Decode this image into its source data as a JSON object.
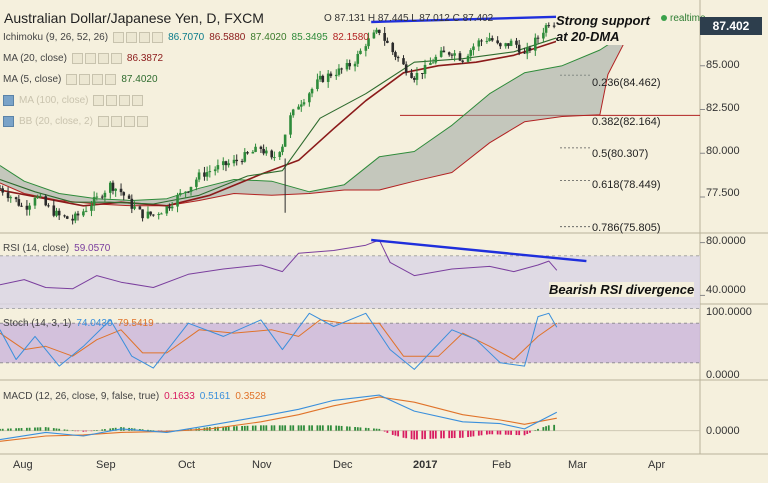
{
  "header": {
    "symbol_title": "Australian Dollar/Japanese Yen, D, FXCM",
    "ohlc": "O 87.131 H 87.445 L 87.012 C 87.402",
    "realtime_label": "realtime",
    "last_price": "87.402"
  },
  "indicators": [
    {
      "name": "Ichimoku (9, 26, 52, 26)",
      "values": [
        "86.7070",
        "86.5880",
        "87.4020",
        "85.3495",
        "82.1580"
      ],
      "colors": [
        "#0a7b8a",
        "#8b1a1a",
        "#3a7a2a",
        "#2e8b3a",
        "#b22222"
      ],
      "muted": false
    },
    {
      "name": "MA (20, close)",
      "values": [
        "86.3872"
      ],
      "colors": [
        "#8b1a1a"
      ],
      "muted": false
    },
    {
      "name": "MA (5, close)",
      "values": [
        "87.4020"
      ],
      "colors": [
        "#2e6b2e"
      ],
      "muted": false
    },
    {
      "name": "MA (100, close)",
      "values": [],
      "colors": [],
      "muted": true
    },
    {
      "name": "BB (20, close, 2)",
      "values": [],
      "colors": [],
      "muted": true
    }
  ],
  "rsi_legend": {
    "name": "RSI (14, close)",
    "value": "59.0570"
  },
  "stoch_legend": {
    "name": "Stoch (14, 3, 1)",
    "values": [
      "74.0430",
      "79.5419"
    ]
  },
  "macd_legend": {
    "name": "MACD (12, 26, close, 9, false, true)",
    "values": [
      "0.1633",
      "0.5161",
      "0.3528"
    ]
  },
  "annotations": {
    "support": [
      "Strong support",
      "at 20-DMA"
    ],
    "rsi_div": "Bearish RSI divergence"
  },
  "price_axis": [
    "85.000",
    "82.500",
    "80.000",
    "77.500"
  ],
  "fib_levels": [
    "0.236(84.462)",
    "0.382(82.164)",
    "0.5(80.307)",
    "0.618(78.449)",
    "0.786(75.805)"
  ],
  "rsi_axis": [
    "80.0000",
    "40.0000"
  ],
  "stoch_axis": [
    "100.0000",
    "0.0000"
  ],
  "macd_axis": [
    "0.0000"
  ],
  "x_axis": [
    "Aug",
    "Sep",
    "Oct",
    "Nov",
    "Dec",
    "2017",
    "Feb",
    "Mar",
    "Apr"
  ],
  "colors": {
    "background": "#f5f0dd",
    "bull_candle": "#2e8b3a",
    "bear_candle": "#2b2b2b",
    "cloud": "#9aa6a0",
    "ma20": "#8b1a1a",
    "ma5": "#2e6b2e",
    "span_b": "#b22222",
    "trendline": "#1f2fdc",
    "rsi": "#7b3f9e",
    "stoch_k": "#3a8fdc",
    "stoch_d": "#e0732a",
    "macd": "#3a8fdc",
    "signal": "#e0732a",
    "hist_pos": "#2e8b3a",
    "hist_neg": "#d81b60",
    "price_tag": "#2d3e4d"
  },
  "chart_data": {
    "type": "line",
    "title": "Australian Dollar/Japanese Yen, D, FXCM",
    "x": [
      "Aug",
      "Sep",
      "Oct",
      "Nov",
      "Dec",
      "2017",
      "Feb",
      "Mar",
      "Apr"
    ],
    "ylim": [
      75.5,
      88.3
    ],
    "price_points": [
      [
        "Jul 26",
        78.0
      ],
      [
        "Aug 1",
        77.3
      ],
      [
        "Aug 4",
        76.8
      ],
      [
        "Aug 8",
        77.6
      ],
      [
        "Aug 12",
        77.0
      ],
      [
        "Aug 17",
        76.4
      ],
      [
        "Aug 22",
        76.2
      ],
      [
        "Aug 26",
        76.7
      ],
      [
        "Aug 31",
        77.4
      ],
      [
        "Sep 5",
        78.2
      ],
      [
        "Sep 9",
        77.8
      ],
      [
        "Sep 13",
        77.0
      ],
      [
        "Sep 17",
        76.5
      ],
      [
        "Sep 21",
        76.5
      ],
      [
        "Sep 26",
        76.9
      ],
      [
        "Sep 30",
        77.5
      ],
      [
        "Oct 4",
        78.0
      ],
      [
        "Oct 8",
        78.7
      ],
      [
        "Oct 12",
        79.0
      ],
      [
        "Oct 17",
        79.3
      ],
      [
        "Oct 21",
        79.5
      ],
      [
        "Oct 26",
        79.9
      ],
      [
        "Oct 31",
        80.3
      ],
      [
        "Nov 4",
        79.6
      ],
      [
        "Nov 8",
        80.5
      ],
      [
        "Nov 10",
        81.8
      ],
      [
        "Nov 14",
        82.8
      ],
      [
        "Nov 18",
        83.5
      ],
      [
        "Nov 22",
        84.2
      ],
      [
        "Nov 27",
        84.6
      ],
      [
        "Dec 1",
        84.8
      ],
      [
        "Dec 5",
        85.3
      ],
      [
        "Dec 9",
        86.3
      ],
      [
        "Dec 14",
        87.0
      ],
      [
        "Dec 18",
        86.0
      ],
      [
        "Dec 23",
        85.0
      ],
      [
        "Dec 27",
        84.4
      ],
      [
        "Dec 31",
        84.8
      ],
      [
        "Jan 5",
        85.6
      ],
      [
        "Jan 10",
        85.8
      ],
      [
        "Jan 14",
        85.4
      ],
      [
        "Jan 19",
        86.3
      ],
      [
        "Jan 24",
        86.6
      ],
      [
        "Jan 28",
        86.0
      ],
      [
        "Feb 2",
        86.4
      ],
      [
        "Feb 6",
        85.6
      ],
      [
        "Feb 11",
        86.6
      ],
      [
        "Feb 15",
        87.5
      ],
      [
        "Feb 18",
        87.4
      ]
    ],
    "ma20_points": [
      [
        "Jul 26",
        77.9
      ],
      [
        "Aug 12",
        77.4
      ],
      [
        "Aug 26",
        77.0
      ],
      [
        "Sep 9",
        77.2
      ],
      [
        "Sep 26",
        77.0
      ],
      [
        "Oct 12",
        77.6
      ],
      [
        "Oct 31",
        78.8
      ],
      [
        "Nov 14",
        79.6
      ],
      [
        "Nov 27",
        81.4
      ],
      [
        "Dec 9",
        83.0
      ],
      [
        "Dec 23",
        84.6
      ],
      [
        "Jan 5",
        85.0
      ],
      [
        "Jan 19",
        85.2
      ],
      [
        "Feb 2",
        85.6
      ],
      [
        "Feb 18",
        86.4
      ]
    ],
    "kijun_points": [
      [
        "Jul 26",
        78.5
      ],
      [
        "Aug 8",
        77.8
      ],
      [
        "Aug 22",
        77.2
      ],
      [
        "Sep 5",
        77.2
      ],
      [
        "Sep 21",
        77.1
      ],
      [
        "Oct 8",
        77.6
      ],
      [
        "Oct 26",
        78.7
      ],
      [
        "Nov 8",
        79.0
      ],
      [
        "Nov 22",
        82.0
      ],
      [
        "Dec 9",
        83.4
      ],
      [
        "Dec 27",
        85.2
      ],
      [
        "Jan 14",
        85.4
      ],
      [
        "Feb 2",
        85.8
      ],
      [
        "Feb 18",
        86.6
      ]
    ],
    "cloud_a": [
      [
        "Jul 26",
        79.3
      ],
      [
        "Aug 4",
        78.4
      ],
      [
        "Aug 17",
        77.7
      ],
      [
        "Aug 31",
        77.4
      ],
      [
        "Sep 13",
        77.3
      ],
      [
        "Sep 26",
        77.4
      ],
      [
        "Oct 8",
        78.0
      ],
      [
        "Oct 21",
        78.5
      ],
      [
        "Nov 4",
        78.4
      ],
      [
        "Nov 18",
        77.8
      ],
      [
        "Dec 1",
        78.2
      ],
      [
        "Dec 14",
        79.8
      ],
      [
        "Dec 27",
        80.1
      ],
      [
        "Jan 10",
        81.6
      ],
      [
        "Jan 24",
        83.4
      ],
      [
        "Feb 6",
        84.6
      ],
      [
        "Feb 20",
        85.0
      ],
      [
        "Mar 6",
        85.9
      ],
      [
        "Mar 16",
        86.9
      ]
    ],
    "cloud_b": [
      [
        "Jul 26",
        78.3
      ],
      [
        "Aug 4",
        77.7
      ],
      [
        "Aug 17",
        77.3
      ],
      [
        "Aug 31",
        77.1
      ],
      [
        "Sep 13",
        77.0
      ],
      [
        "Sep 26",
        77.0
      ],
      [
        "Oct 8",
        77.3
      ],
      [
        "Oct 21",
        77.7
      ],
      [
        "Nov 4",
        77.6
      ],
      [
        "Nov 18",
        77.7
      ],
      [
        "Dec 1",
        77.9
      ],
      [
        "Dec 14",
        77.9
      ],
      [
        "Dec 27",
        78.4
      ],
      [
        "Jan 10",
        78.9
      ],
      [
        "Jan 24",
        80.6
      ],
      [
        "Feb 6",
        81.8
      ],
      [
        "Feb 20",
        82.1
      ],
      [
        "Mar 6",
        82.2
      ],
      [
        "Mar 9",
        84.5
      ],
      [
        "Mar 16",
        86.6
      ]
    ],
    "trendline_price": [
      [
        "Dec 11",
        87.5
      ],
      [
        "Feb 18",
        87.8
      ]
    ],
    "rsi": {
      "ylim": [
        35,
        85
      ],
      "bands": [
        70,
        30
      ],
      "points": [
        [
          "Jul 26",
          48
        ],
        [
          "Aug 4",
          52
        ],
        [
          "Aug 12",
          46
        ],
        [
          "Aug 22",
          45
        ],
        [
          "Aug 31",
          55
        ],
        [
          "Sep 9",
          50
        ],
        [
          "Sep 21",
          46
        ],
        [
          "Oct 4",
          56
        ],
        [
          "Oct 17",
          60
        ],
        [
          "Oct 31",
          63
        ],
        [
          "Nov 8",
          58
        ],
        [
          "Nov 14",
          72
        ],
        [
          "Nov 27",
          74
        ],
        [
          "Dec 9",
          78
        ],
        [
          "Dec 14",
          82
        ],
        [
          "Dec 18",
          65
        ],
        [
          "Dec 27",
          55
        ],
        [
          "Jan 10",
          60
        ],
        [
          "Jan 24",
          62
        ],
        [
          "Feb 2",
          58
        ],
        [
          "Feb 11",
          63
        ],
        [
          "Feb 15",
          66
        ],
        [
          "Feb 18",
          59
        ]
      ],
      "trendline": [
        [
          "Dec 11",
          82
        ],
        [
          "Mar 1",
          66
        ]
      ]
    },
    "stoch": {
      "ylim": [
        0,
        100
      ],
      "bands": [
        80,
        20
      ],
      "k": [
        [
          "Jul 26",
          70
        ],
        [
          "Aug 1",
          25
        ],
        [
          "Aug 8",
          60
        ],
        [
          "Aug 17",
          15
        ],
        [
          "Aug 26",
          45
        ],
        [
          "Sep 5",
          85
        ],
        [
          "Sep 13",
          30
        ],
        [
          "Sep 21",
          12
        ],
        [
          "Oct 4",
          80
        ],
        [
          "Oct 17",
          60
        ],
        [
          "Oct 31",
          85
        ],
        [
          "Nov 8",
          40
        ],
        [
          "Nov 18",
          95
        ],
        [
          "Nov 27",
          75
        ],
        [
          "Dec 9",
          95
        ],
        [
          "Dec 18",
          40
        ],
        [
          "Dec 27",
          10
        ],
        [
          "Jan 10",
          70
        ],
        [
          "Jan 19",
          55
        ],
        [
          "Jan 28",
          20
        ],
        [
          "Feb 6",
          15
        ],
        [
          "Feb 11",
          90
        ],
        [
          "Feb 15",
          95
        ],
        [
          "Feb 18",
          74
        ]
      ],
      "d": [
        [
          "Jul 26",
          65
        ],
        [
          "Aug 4",
          40
        ],
        [
          "Aug 12",
          45
        ],
        [
          "Aug 22",
          30
        ],
        [
          "Aug 31",
          55
        ],
        [
          "Sep 9",
          70
        ],
        [
          "Sep 17",
          35
        ],
        [
          "Sep 26",
          35
        ],
        [
          "Oct 8",
          70
        ],
        [
          "Oct 21",
          65
        ],
        [
          "Nov 4",
          70
        ],
        [
          "Nov 14",
          60
        ],
        [
          "Nov 22",
          85
        ],
        [
          "Dec 1",
          80
        ],
        [
          "Dec 14",
          80
        ],
        [
          "Dec 23",
          30
        ],
        [
          "Jan 5",
          30
        ],
        [
          "Jan 14",
          65
        ],
        [
          "Jan 24",
          45
        ],
        [
          "Feb 2",
          25
        ],
        [
          "Feb 11",
          60
        ],
        [
          "Feb 18",
          80
        ]
      ]
    },
    "macd": {
      "ylim": [
        -0.6,
        1.2
      ],
      "macd": [
        [
          "Jul 26",
          -0.25
        ],
        [
          "Aug 12",
          -0.05
        ],
        [
          "Aug 26",
          -0.15
        ],
        [
          "Sep 9",
          0.05
        ],
        [
          "Sep 26",
          -0.05
        ],
        [
          "Oct 12",
          0.15
        ],
        [
          "Oct 31",
          0.4
        ],
        [
          "Nov 14",
          0.6
        ],
        [
          "Nov 27",
          0.85
        ],
        [
          "Dec 14",
          1.0
        ],
        [
          "Dec 27",
          0.55
        ],
        [
          "Jan 14",
          0.25
        ],
        [
          "Jan 28",
          0.2
        ],
        [
          "Feb 6",
          0.05
        ],
        [
          "Feb 18",
          0.52
        ]
      ],
      "signal": [
        [
          "Jul 26",
          -0.3
        ],
        [
          "Aug 12",
          -0.15
        ],
        [
          "Aug 26",
          -0.12
        ],
        [
          "Sep 9",
          -0.05
        ],
        [
          "Sep 26",
          -0.02
        ],
        [
          "Oct 12",
          0.05
        ],
        [
          "Oct 31",
          0.25
        ],
        [
          "Nov 14",
          0.45
        ],
        [
          "Nov 27",
          0.7
        ],
        [
          "Dec 14",
          0.95
        ],
        [
          "Dec 27",
          0.8
        ],
        [
          "Jan 14",
          0.45
        ],
        [
          "Jan 28",
          0.3
        ],
        [
          "Feb 6",
          0.18
        ],
        [
          "Feb 18",
          0.35
        ]
      ],
      "hist": [
        [
          "Jul 26",
          0.05
        ],
        [
          "Aug 12",
          0.1
        ],
        [
          "Aug 26",
          -0.03
        ],
        [
          "Sep 9",
          0.1
        ],
        [
          "Sep 26",
          -0.03
        ],
        [
          "Oct 12",
          0.1
        ],
        [
          "Oct 31",
          0.15
        ],
        [
          "Nov 14",
          0.15
        ],
        [
          "Nov 27",
          0.15
        ],
        [
          "Dec 14",
          0.05
        ],
        [
          "Dec 18",
          -0.1
        ],
        [
          "Dec 23",
          -0.2
        ],
        [
          "Dec 27",
          -0.25
        ],
        [
          "Jan 5",
          -0.22
        ],
        [
          "Jan 14",
          -0.2
        ],
        [
          "Jan 24",
          -0.1
        ],
        [
          "Feb 2",
          -0.12
        ],
        [
          "Feb 6",
          -0.13
        ],
        [
          "Feb 11",
          0.05
        ],
        [
          "Feb 15",
          0.15
        ],
        [
          "Feb 18",
          0.17
        ]
      ]
    }
  }
}
